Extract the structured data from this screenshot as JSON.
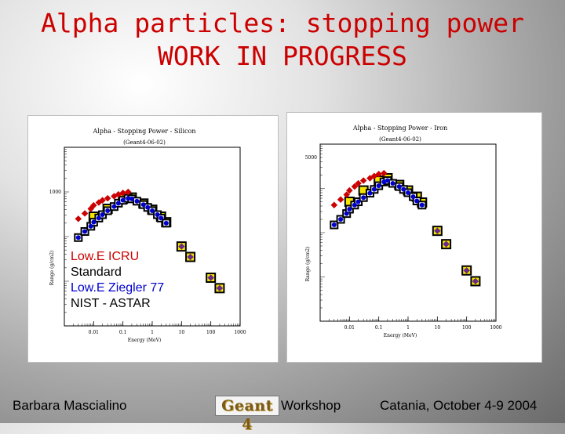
{
  "slide": {
    "title_line1": "Alpha particles: stopping power",
    "title_line2": "WORK IN PROGRESS",
    "footer_author": "Barbara Mascialino",
    "footer_logo": "Geant 4",
    "footer_workshop": "Workshop",
    "footer_place_date": "Catania, October 4-9 2004"
  },
  "legend": [
    {
      "label": "Low.E ICRU",
      "color": "#cc0000"
    },
    {
      "label": "Standard",
      "color": "#000000"
    },
    {
      "label": "Low.E Ziegler 77",
      "color": "#0000cc"
    },
    {
      "label": "NIST - ASTAR",
      "color": "#000000"
    }
  ],
  "chart_data": [
    {
      "type": "scatter",
      "title": "Alpha - Stopping Power - Silicon",
      "subtitle": "(Geant4-06-02)",
      "xlabel": "Energy (MeV)",
      "ylabel": "Range (g/cm2)",
      "x_scale": "log",
      "y_scale": "log",
      "xlim": [
        0.001,
        1000
      ],
      "ylim": [
        1,
        10000
      ],
      "x_ticks": [
        "0.01",
        "0.1",
        "1",
        "10",
        "100",
        "1000"
      ],
      "y_ticks": [
        "1000"
      ],
      "series": [
        {
          "name": "Low.E ICRU",
          "color": "#cc0000",
          "x": [
            0.003,
            0.005,
            0.008,
            0.01,
            0.015,
            0.02,
            0.03,
            0.05,
            0.07,
            0.1,
            0.15
          ],
          "y": [
            250,
            330,
            420,
            500,
            580,
            650,
            720,
            800,
            880,
            950,
            1000
          ]
        },
        {
          "name": "Standard",
          "color": "#000000",
          "x": [
            0.003,
            0.005,
            0.008,
            0.01,
            0.015,
            0.02,
            0.03,
            0.05,
            0.07,
            0.1,
            0.15,
            0.2,
            0.3,
            0.5,
            0.7,
            1,
            1.5,
            2,
            3
          ],
          "y": [
            95,
            130,
            170,
            210,
            260,
            310,
            380,
            470,
            560,
            650,
            720,
            700,
            620,
            520,
            450,
            380,
            310,
            260,
            200
          ]
        },
        {
          "name": "Low.E Ziegler 77",
          "color": "#0000cc",
          "x": [
            0.003,
            0.005,
            0.008,
            0.01,
            0.015,
            0.02,
            0.03,
            0.05,
            0.07,
            0.1,
            0.15,
            0.2,
            0.3,
            0.5,
            0.7,
            1,
            1.5,
            2,
            3
          ],
          "y": [
            95,
            130,
            170,
            210,
            260,
            310,
            380,
            470,
            560,
            650,
            720,
            700,
            620,
            520,
            450,
            380,
            310,
            260,
            200
          ]
        },
        {
          "name": "NIST - ASTAR",
          "color": "#000000",
          "x": [
            0.01,
            0.03,
            0.1,
            0.2,
            0.5,
            1,
            2,
            3,
            10,
            20,
            100,
            200
          ],
          "y": [
            280,
            420,
            700,
            750,
            550,
            400,
            280,
            210,
            60,
            35,
            12,
            7
          ]
        }
      ]
    },
    {
      "type": "scatter",
      "title": "Alpha - Stopping Power - Iron",
      "subtitle": "(Geant4-06-02)",
      "xlabel": "Energy (MeV)",
      "ylabel": "Range (g/cm2)",
      "x_scale": "log",
      "y_scale": "log",
      "xlim": [
        0.001,
        1000
      ],
      "ylim": [
        1,
        10000
      ],
      "x_ticks": [
        "0.01",
        "0.1",
        "1",
        "10",
        "100",
        "1000"
      ],
      "y_ticks": [
        "5000"
      ],
      "series": [
        {
          "name": "Low.E ICRU",
          "color": "#cc0000",
          "x": [
            0.003,
            0.005,
            0.008,
            0.01,
            0.015,
            0.02,
            0.03,
            0.05,
            0.07,
            0.1,
            0.15
          ],
          "y": [
            420,
            560,
            720,
            900,
            1100,
            1300,
            1500,
            1700,
            1900,
            2100,
            2200
          ]
        },
        {
          "name": "Standard",
          "color": "#000000",
          "x": [
            0.003,
            0.005,
            0.008,
            0.01,
            0.015,
            0.02,
            0.03,
            0.05,
            0.07,
            0.1,
            0.15,
            0.2,
            0.3,
            0.5,
            0.7,
            1,
            1.5,
            2,
            3
          ],
          "y": [
            150,
            200,
            270,
            340,
            420,
            500,
            620,
            780,
            950,
            1150,
            1400,
            1500,
            1300,
            1100,
            950,
            800,
            650,
            520,
            420
          ]
        },
        {
          "name": "Low.E Ziegler 77",
          "color": "#0000cc",
          "x": [
            0.003,
            0.005,
            0.008,
            0.01,
            0.015,
            0.02,
            0.03,
            0.05,
            0.07,
            0.1,
            0.15,
            0.2,
            0.3,
            0.5,
            0.7,
            1,
            1.5,
            2,
            3
          ],
          "y": [
            150,
            200,
            270,
            340,
            420,
            500,
            620,
            780,
            950,
            1150,
            1400,
            1500,
            1300,
            1100,
            950,
            800,
            650,
            520,
            420
          ]
        },
        {
          "name": "NIST - ASTAR",
          "color": "#000000",
          "x": [
            0.01,
            0.03,
            0.1,
            0.2,
            0.5,
            1,
            2,
            3,
            10,
            20,
            100,
            200
          ],
          "y": [
            500,
            900,
            1500,
            1700,
            1200,
            900,
            650,
            480,
            110,
            55,
            14,
            8
          ]
        }
      ]
    }
  ]
}
